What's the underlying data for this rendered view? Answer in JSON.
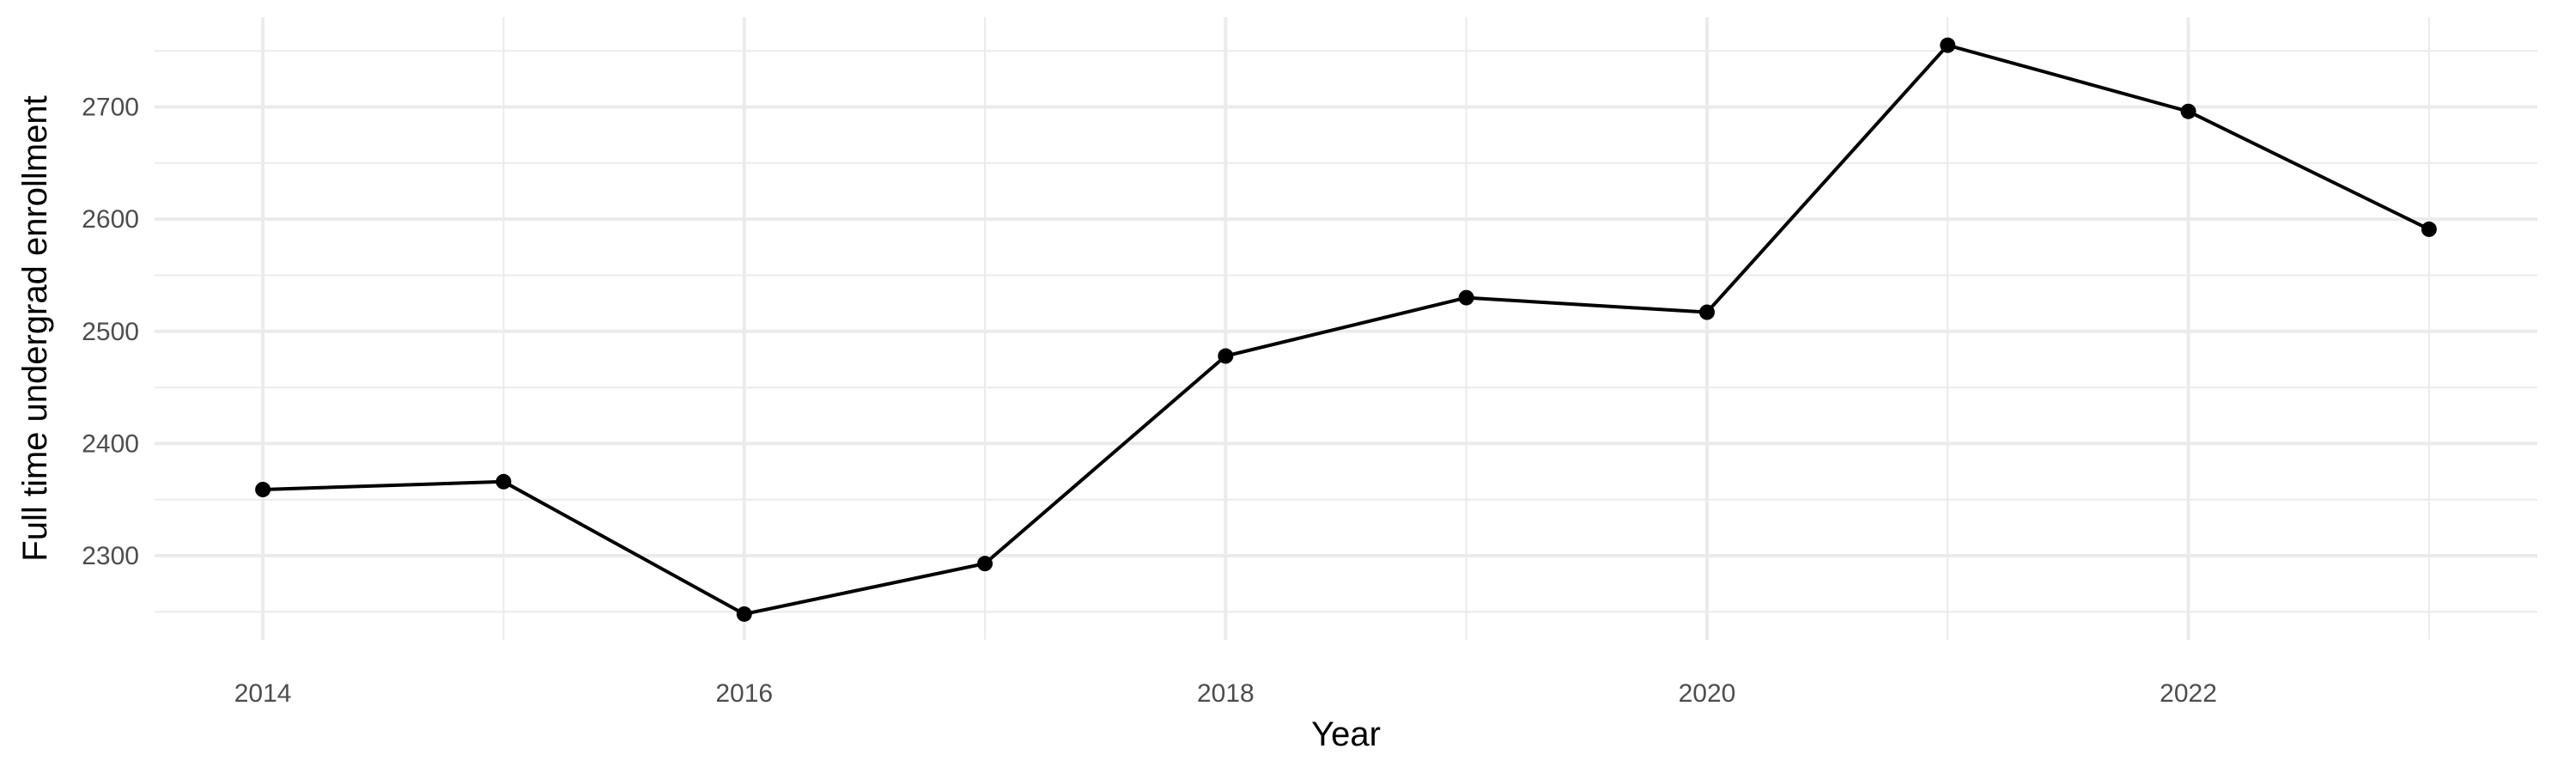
{
  "chart_data": {
    "type": "line",
    "title": "",
    "xlabel": "Year",
    "ylabel": "Full time undergrad enrollment",
    "x": [
      2014,
      2015,
      2016,
      2017,
      2018,
      2019,
      2020,
      2021,
      2022,
      2023
    ],
    "series": [
      {
        "name": "",
        "values": [
          2359,
          2366,
          2248,
          2293,
          2478,
          2530,
          2517,
          2755,
          2696,
          2591
        ]
      }
    ],
    "xlim": [
      2013.55,
      2023.45
    ],
    "ylim": [
      2225,
      2780
    ],
    "x_ticks": [
      2014,
      2016,
      2018,
      2020,
      2022
    ],
    "x_tick_labels": [
      "2014",
      "2016",
      "2018",
      "2020",
      "2022"
    ],
    "y_ticks": [
      2300,
      2400,
      2500,
      2600,
      2700
    ],
    "y_tick_labels": [
      "2300",
      "2400",
      "2500",
      "2600",
      "2700"
    ],
    "x_minor_ticks": [
      2015,
      2017,
      2019,
      2021,
      2023
    ],
    "y_minor_ticks": [
      2250,
      2350,
      2450,
      2550,
      2650,
      2750
    ],
    "grid": true,
    "legend": "none",
    "colors": {
      "line": "#000000",
      "point": "#000000",
      "grid": "#ebebeb",
      "background": "#ffffff"
    }
  }
}
